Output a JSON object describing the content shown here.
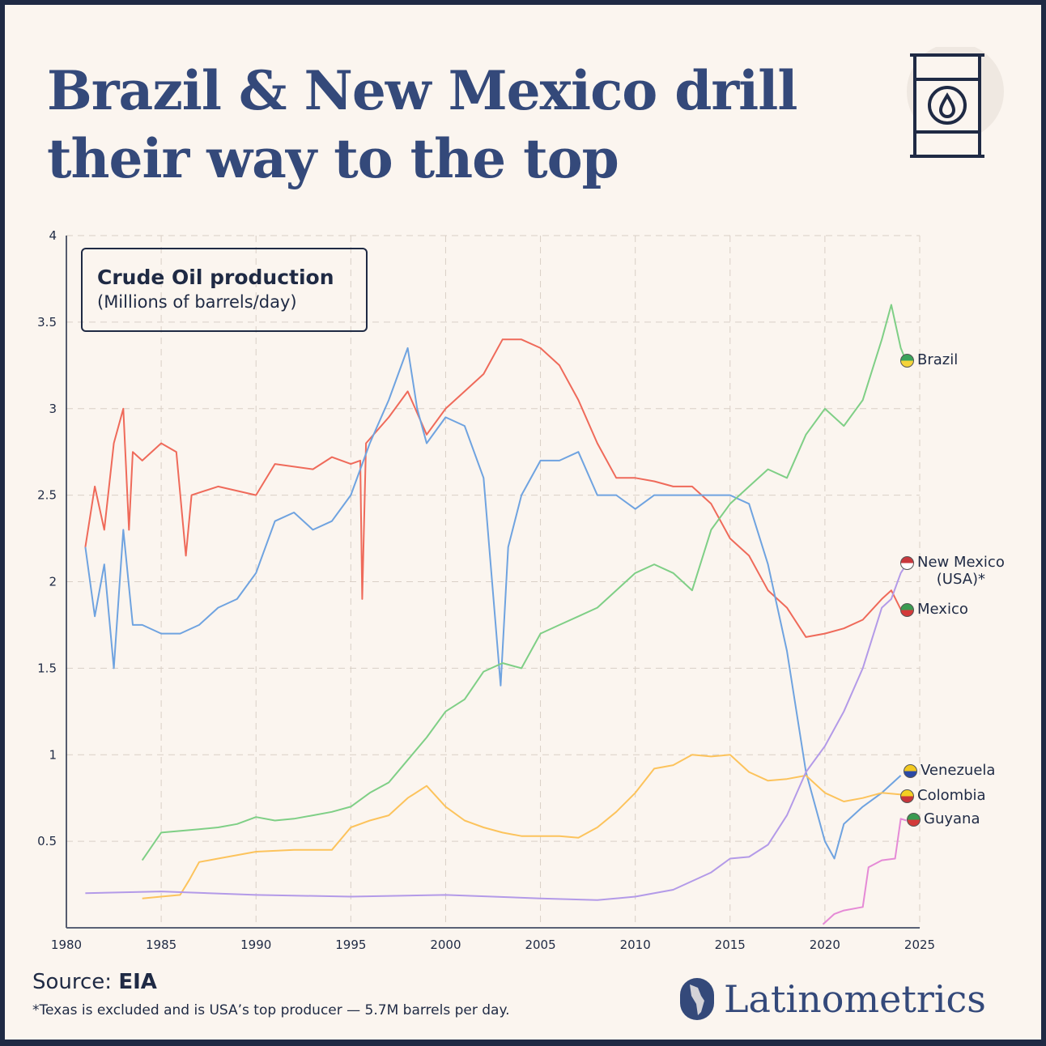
{
  "header": {
    "title_line1": "Brazil & New Mexico drill",
    "title_line2": "their way to the top",
    "icon": "oil-barrel-icon"
  },
  "legend_box": {
    "title": "Crude Oil production",
    "subtitle": "(Millions of barrels/day)"
  },
  "footer": {
    "source_label": "Source: ",
    "source": "EIA",
    "note": "*Texas is excluded and is USA’s top producer —  5.7M barrels per day.",
    "brand": "Latinometrics"
  },
  "chart_data": {
    "type": "line",
    "xlim": [
      1980,
      2025
    ],
    "ylim": [
      0,
      4
    ],
    "x_ticks": [
      "1980",
      "1985",
      "1990",
      "1995",
      "2000",
      "2005",
      "2010",
      "2015",
      "2020",
      "2025"
    ],
    "y_ticks": [
      "0.5",
      "1",
      "1.5",
      "2",
      "2.5",
      "3",
      "3.5",
      "4"
    ],
    "grid": true,
    "series": [
      {
        "name": "Mexico",
        "color": "#ef6a5a",
        "x": [
          1981,
          1981.5,
          1982,
          1982.5,
          1983,
          1983.3,
          1983.5,
          1984,
          1985,
          1985.8,
          1986.3,
          1986.6,
          1988,
          1990,
          1991,
          1993,
          1994,
          1995,
          1995.5,
          1995.6,
          1995.8,
          1997,
          1998,
          1999,
          2000,
          2001,
          2002,
          2003,
          2004,
          2005,
          2006,
          2007,
          2008,
          2009,
          2010,
          2011,
          2012,
          2013,
          2014,
          2015,
          2016,
          2017,
          2018,
          2019,
          2020,
          2021,
          2022,
          2023,
          2023.5,
          2024,
          2024.3
        ],
        "y": [
          2.2,
          2.55,
          2.3,
          2.8,
          3.0,
          2.3,
          2.75,
          2.7,
          2.8,
          2.75,
          2.15,
          2.5,
          2.55,
          2.5,
          2.68,
          2.65,
          2.72,
          2.68,
          2.7,
          1.9,
          2.8,
          2.95,
          3.1,
          2.85,
          3.0,
          3.1,
          3.2,
          3.4,
          3.4,
          3.35,
          3.25,
          3.05,
          2.8,
          2.6,
          2.6,
          2.58,
          2.55,
          2.55,
          2.45,
          2.25,
          2.15,
          1.95,
          1.85,
          1.68,
          1.7,
          1.73,
          1.78,
          1.9,
          1.95,
          1.84,
          1.83
        ]
      },
      {
        "name": "Venezuela",
        "color": "#6fa3e0",
        "x": [
          1981,
          1981.5,
          1982,
          1982.5,
          1983,
          1983.5,
          1984,
          1985,
          1986,
          1987,
          1988,
          1989,
          1990,
          1991,
          1992,
          1993,
          1994,
          1995,
          1996,
          1997,
          1998,
          1998.5,
          1999,
          2000,
          2001,
          2002,
          2002.3,
          2002.9,
          2003.3,
          2004,
          2005,
          2006,
          2007,
          2008,
          2009,
          2010,
          2011,
          2015,
          2016,
          2017,
          2018,
          2019,
          2020,
          2020.5,
          2021,
          2022,
          2023,
          2024
        ],
        "y": [
          2.2,
          1.8,
          2.1,
          1.5,
          2.3,
          1.75,
          1.75,
          1.7,
          1.7,
          1.75,
          1.85,
          1.9,
          2.05,
          2.35,
          2.4,
          2.3,
          2.35,
          2.5,
          2.8,
          3.05,
          3.35,
          3.0,
          2.8,
          2.95,
          2.9,
          2.6,
          2.2,
          1.4,
          2.2,
          2.5,
          2.7,
          2.7,
          2.75,
          2.5,
          2.5,
          2.42,
          2.5,
          2.5,
          2.45,
          2.1,
          1.6,
          0.9,
          0.5,
          0.4,
          0.6,
          0.7,
          0.78,
          0.88
        ]
      },
      {
        "name": "Brazil",
        "color": "#7fcf86",
        "x": [
          1984,
          1985,
          1987,
          1988,
          1989,
          1990,
          1991,
          1992,
          1993,
          1994,
          1995,
          1996,
          1997,
          1998,
          1999,
          2000,
          2001,
          2002,
          2003,
          2004,
          2005,
          2006,
          2007,
          2008,
          2009,
          2010,
          2011,
          2012,
          2013,
          2014,
          2015,
          2016,
          2017,
          2018,
          2019,
          2020,
          2021,
          2022,
          2023,
          2023.5,
          2024,
          2024.3
        ],
        "y": [
          0.39,
          0.55,
          0.57,
          0.58,
          0.6,
          0.64,
          0.62,
          0.63,
          0.65,
          0.67,
          0.7,
          0.78,
          0.84,
          0.97,
          1.1,
          1.25,
          1.32,
          1.48,
          1.53,
          1.5,
          1.7,
          1.75,
          1.8,
          1.85,
          1.95,
          2.05,
          2.1,
          2.05,
          1.95,
          2.3,
          2.45,
          2.55,
          2.65,
          2.6,
          2.85,
          3.0,
          2.9,
          3.05,
          3.4,
          3.6,
          3.35,
          3.27
        ]
      },
      {
        "name": "Colombia",
        "color": "#fcc35c",
        "x": [
          1984,
          1985,
          1986,
          1986.5,
          1987,
          1988,
          1990,
          1992,
          1994,
          1995,
          1996,
          1997,
          1998,
          1999,
          2000,
          2001,
          2002,
          2003,
          2004,
          2005,
          2006,
          2007,
          2008,
          2009,
          2010,
          2011,
          2012,
          2013,
          2014,
          2015,
          2016,
          2017,
          2018,
          2019,
          2020,
          2021,
          2022,
          2023,
          2024
        ],
        "y": [
          0.17,
          0.18,
          0.19,
          0.28,
          0.38,
          0.4,
          0.44,
          0.45,
          0.45,
          0.58,
          0.62,
          0.65,
          0.75,
          0.82,
          0.7,
          0.62,
          0.58,
          0.55,
          0.53,
          0.53,
          0.53,
          0.52,
          0.58,
          0.67,
          0.78,
          0.92,
          0.94,
          1.0,
          0.99,
          1.0,
          0.9,
          0.85,
          0.86,
          0.88,
          0.78,
          0.73,
          0.75,
          0.78,
          0.77
        ]
      },
      {
        "name": "New Mexico (USA)*",
        "color": "#b39ae8",
        "x": [
          1981,
          1985,
          1990,
          1995,
          2000,
          2005,
          2008,
          2010,
          2012,
          2014,
          2015,
          2016,
          2017,
          2018,
          2019,
          2020,
          2021,
          2022,
          2023,
          2023.5,
          2024,
          2024.3
        ],
        "y": [
          0.2,
          0.21,
          0.19,
          0.18,
          0.19,
          0.17,
          0.16,
          0.18,
          0.22,
          0.32,
          0.4,
          0.41,
          0.48,
          0.65,
          0.9,
          1.05,
          1.25,
          1.5,
          1.85,
          1.9,
          2.05,
          2.1
        ]
      },
      {
        "name": "Guyana",
        "color": "#e58ad6",
        "x": [
          2019.9,
          2020.5,
          2021,
          2022,
          2022.3,
          2023,
          2023.7,
          2024,
          2024.3
        ],
        "y": [
          0.02,
          0.08,
          0.1,
          0.12,
          0.35,
          0.39,
          0.4,
          0.63,
          0.62
        ]
      }
    ],
    "labels": [
      {
        "text": "Brazil",
        "flag": [
          "#3aa35a",
          "#f5d33a"
        ]
      },
      {
        "text": "New Mexico",
        "text2": "(USA)*",
        "flag": [
          "#c8383c",
          "#ffffff"
        ]
      },
      {
        "text": "Mexico",
        "flag": [
          "#3a9a50",
          "#d33a3a"
        ]
      },
      {
        "text": "Venezuela",
        "flag": [
          "#f2c81f",
          "#2b49a5"
        ]
      },
      {
        "text": "Colombia",
        "flag": [
          "#f4cf23",
          "#c7343b"
        ]
      },
      {
        "text": "Guyana",
        "flag": [
          "#3a9a50",
          "#d33a3a"
        ]
      }
    ]
  }
}
